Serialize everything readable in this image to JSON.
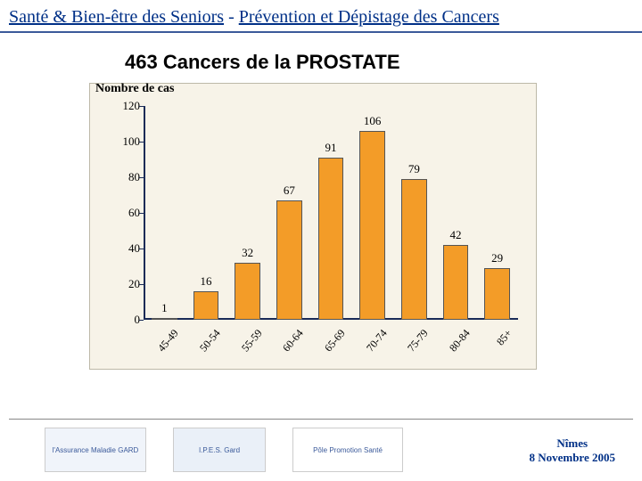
{
  "header": {
    "prefix": "Santé & Bien-être des Seniors",
    "sep": " - ",
    "suffix": "Prévention et Dépistage des Cancers"
  },
  "subtitle": "463 Cancers de la PROSTATE",
  "chart": {
    "type": "bar",
    "y_axis_title": "Nombre de cas",
    "background_color": "#f7f3e8",
    "border_color": "#bdb9a8",
    "axis_color": "#1a2b57",
    "bar_color": "#f39c28",
    "bar_border_color": "#555555",
    "ylim": [
      0,
      120
    ],
    "ytick_step": 20,
    "yticks": [
      0,
      20,
      40,
      60,
      80,
      100,
      120
    ],
    "categories": [
      "45-49",
      "50-54",
      "55-59",
      "60-64",
      "65-69",
      "70-74",
      "75-79",
      "80-84",
      "85+"
    ],
    "values": [
      1,
      16,
      32,
      67,
      91,
      106,
      79,
      42,
      29
    ],
    "bar_width_ratio": 0.62,
    "label_fontsize": 13,
    "tick_fontsize": 12
  },
  "footer": {
    "logos": [
      {
        "name": "assurance-maladie-gard",
        "text": "l'Assurance Maladie GARD"
      },
      {
        "name": "ipes-gard",
        "text": "I.P.E.S. Gard"
      },
      {
        "name": "pole-promotion-sante",
        "text": "Pôle Promotion Santé"
      }
    ],
    "location": "Nîmes",
    "date": "8 Novembre 2005"
  }
}
